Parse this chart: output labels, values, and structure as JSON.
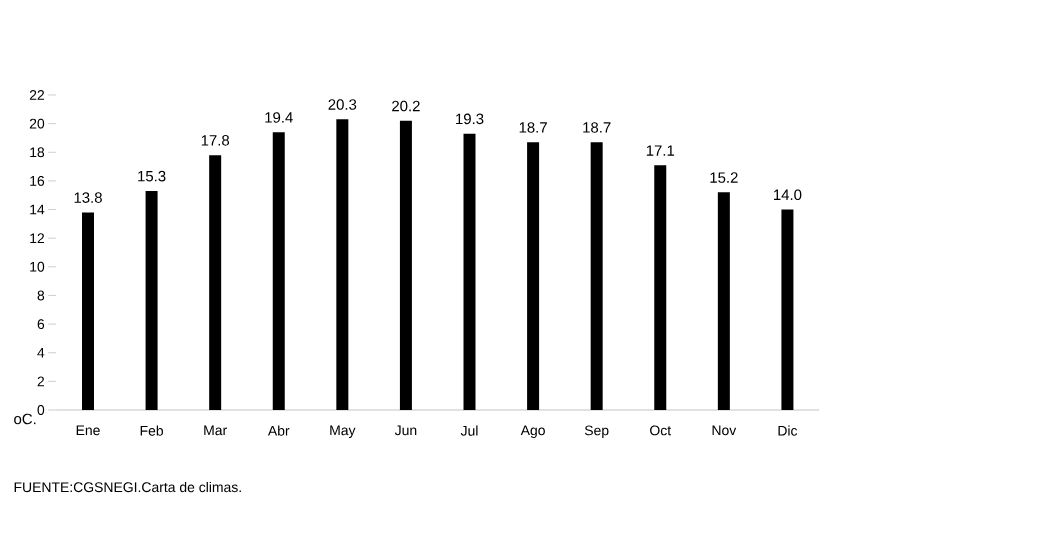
{
  "chart_data": {
    "type": "bar",
    "ylabel": "oC.",
    "categories": [
      "Ene",
      "Feb",
      "Mar",
      "Abr",
      "May",
      "Jun",
      "Jul",
      "Ago",
      "Sep",
      "Oct",
      "Nov",
      "Dic"
    ],
    "values": [
      13.8,
      15.3,
      17.8,
      19.4,
      20.3,
      20.2,
      19.3,
      18.7,
      18.7,
      17.1,
      15.2,
      14.0
    ],
    "value_labels": [
      "13.8",
      "15.3",
      "17.8",
      "19.4",
      "20.3",
      "20.2",
      "19.3",
      "18.7",
      "18.7",
      "17.1",
      "15.2",
      "14.0"
    ],
    "color": "#000000",
    "ylim": [
      0,
      22
    ],
    "yticks": [
      0,
      2,
      4,
      6,
      8,
      10,
      12,
      14,
      16,
      18,
      20,
      22
    ],
    "annotations": [
      "FUENTE:CGSNEGI.Carta de climas."
    ]
  }
}
